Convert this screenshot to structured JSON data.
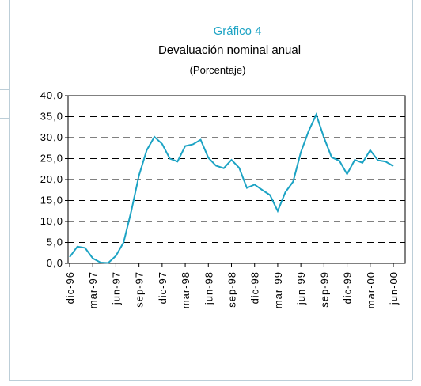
{
  "chart_data": {
    "type": "line",
    "title": "Gráfico 4",
    "subtitle": "Devaluación nominal anual",
    "unit_label": "(Porcentaje)",
    "categories": [
      "dic-96",
      null,
      null,
      "mar-97",
      null,
      null,
      "jun-97",
      null,
      null,
      "sep-97",
      null,
      null,
      "dic-97",
      null,
      null,
      "mar-98",
      null,
      null,
      "jun-98",
      null,
      null,
      "sep-98",
      null,
      null,
      "dic-98",
      null,
      null,
      "mar-99",
      null,
      null,
      "jun-99",
      null,
      null,
      "sep-99",
      null,
      null,
      "dic-99",
      null,
      null,
      "mar-00",
      null,
      null,
      "jun-00"
    ],
    "values": [
      1.5,
      4.0,
      3.7,
      1.2,
      0.2,
      0.1,
      1.8,
      5.0,
      12.5,
      21.0,
      27.0,
      30.2,
      28.5,
      25.0,
      24.3,
      28.0,
      28.4,
      29.5,
      25.2,
      23.3,
      22.7,
      24.7,
      22.8,
      18.0,
      18.8,
      17.5,
      16.3,
      12.5,
      17.0,
      19.5,
      26.5,
      31.5,
      35.5,
      30.0,
      25.3,
      24.5,
      21.3,
      24.7,
      24.0,
      27.0,
      24.6,
      24.3,
      23.2
    ],
    "color": "#1ca3c4",
    "title_color": "#1ca3c4",
    "ylim": [
      0,
      40
    ],
    "yticks": [
      {
        "value": 0,
        "label": "0,0"
      },
      {
        "value": 5,
        "label": "5,0"
      },
      {
        "value": 10,
        "label": "10,0"
      },
      {
        "value": 15,
        "label": "15,0"
      },
      {
        "value": 20,
        "label": "20,0"
      },
      {
        "value": 25,
        "label": "25,0"
      },
      {
        "value": 30,
        "label": "30,0"
      },
      {
        "value": 35,
        "label": "35,0"
      },
      {
        "value": 40,
        "label": "40,0"
      }
    ],
    "grid": true
  }
}
